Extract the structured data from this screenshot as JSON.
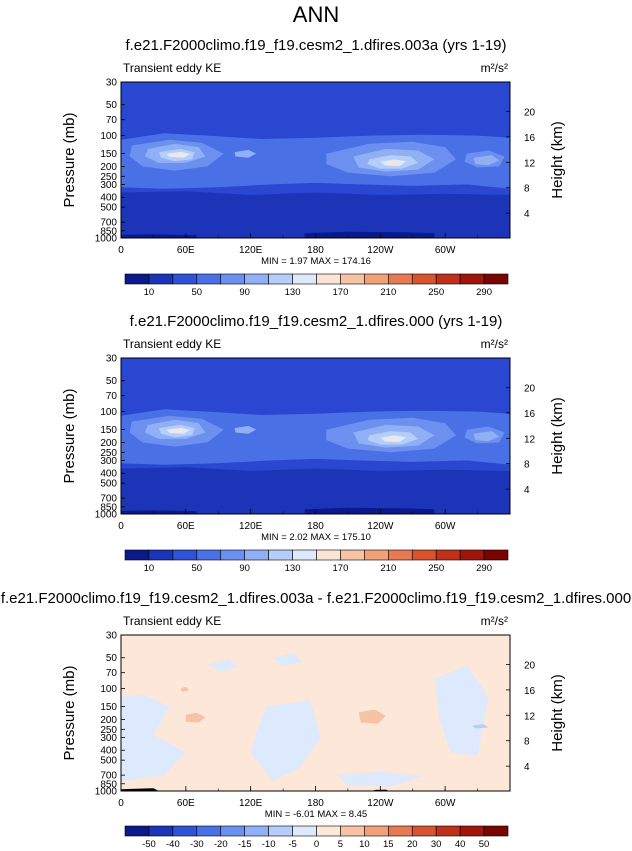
{
  "page_title": "ANN",
  "unit_label": "m²/s²",
  "variable_label": "Transient eddy KE",
  "y_left_label": "Pressure (mb)",
  "y_right_label": "Height (km)",
  "chart_data": [
    {
      "type": "heatmap",
      "title": "f.e21.F2000climo.f19_f19.cesm2_1.dfires.003a (yrs 1-19)",
      "subtitle": "Transient eddy KE",
      "x_ticks": [
        "0",
        "60E",
        "120E",
        "180",
        "120W",
        "60W"
      ],
      "x_range": [
        0,
        360
      ],
      "y_ticks": [
        "30",
        "50",
        "70",
        "100",
        "150",
        "200",
        "250",
        "300",
        "400",
        "500",
        "700",
        "850",
        "1000"
      ],
      "y_range_mb": [
        30,
        1000
      ],
      "height_ticks": [
        "20",
        "16",
        "12",
        "8",
        "4"
      ],
      "stats": "MIN =   1.97  MAX = 174.16",
      "min": 1.97,
      "max": 174.16,
      "colorbar_labels": [
        "10",
        "50",
        "90",
        "130",
        "170",
        "210",
        "250",
        "290"
      ],
      "colorbar_colors": [
        "#0a1a8a",
        "#1b34b8",
        "#2f52d6",
        "#4a70e6",
        "#6b90ef",
        "#8fb0f5",
        "#b5cdf9",
        "#dde9fc",
        "#fbe3d6",
        "#f7c3a5",
        "#f1a078",
        "#e77a52",
        "#d8532f",
        "#c0301a",
        "#a0150c",
        "#7a0500"
      ],
      "background_color": "#2947d0"
    },
    {
      "type": "heatmap",
      "title": "f.e21.F2000climo.f19_f19.cesm2_1.dfires.000 (yrs 1-19)",
      "subtitle": "Transient eddy KE",
      "x_ticks": [
        "0",
        "60E",
        "120E",
        "180",
        "120W",
        "60W"
      ],
      "x_range": [
        0,
        360
      ],
      "y_ticks": [
        "30",
        "50",
        "70",
        "100",
        "150",
        "200",
        "250",
        "300",
        "400",
        "500",
        "700",
        "850",
        "1000"
      ],
      "y_range_mb": [
        30,
        1000
      ],
      "height_ticks": [
        "20",
        "16",
        "12",
        "8",
        "4"
      ],
      "stats": "MIN =   2.02  MAX = 175.10",
      "min": 2.02,
      "max": 175.1,
      "colorbar_labels": [
        "10",
        "50",
        "90",
        "130",
        "170",
        "210",
        "250",
        "290"
      ],
      "colorbar_colors": [
        "#0a1a8a",
        "#1b34b8",
        "#2f52d6",
        "#4a70e6",
        "#6b90ef",
        "#8fb0f5",
        "#b5cdf9",
        "#dde9fc",
        "#fbe3d6",
        "#f7c3a5",
        "#f1a078",
        "#e77a52",
        "#d8532f",
        "#c0301a",
        "#a0150c",
        "#7a0500"
      ],
      "background_color": "#2947d0"
    },
    {
      "type": "heatmap",
      "title": "f.e21.F2000climo.f19_f19.cesm2_1.dfires.003a - f.e21.F2000climo.f19_f19.cesm2_1.dfires.000",
      "subtitle": "Transient eddy KE",
      "x_ticks": [
        "0",
        "60E",
        "120E",
        "180",
        "120W",
        "60W"
      ],
      "x_range": [
        0,
        360
      ],
      "y_ticks": [
        "30",
        "50",
        "70",
        "100",
        "150",
        "200",
        "250",
        "300",
        "400",
        "500",
        "700",
        "850",
        "1000"
      ],
      "y_range_mb": [
        30,
        1000
      ],
      "height_ticks": [
        "20",
        "16",
        "12",
        "8",
        "4"
      ],
      "stats": "MIN =  -6.01  MAX =   8.45",
      "min": -6.01,
      "max": 8.45,
      "colorbar_labels": [
        "-50",
        "-40",
        "-30",
        "-20",
        "-15",
        "-10",
        "-5",
        "0",
        "5",
        "10",
        "15",
        "20",
        "30",
        "40",
        "50"
      ],
      "colorbar_colors": [
        "#0a1a8a",
        "#1b34b8",
        "#2f52d6",
        "#4a70e6",
        "#6b90ef",
        "#8fb0f5",
        "#b5cdf9",
        "#dde9fc",
        "#fde7d8",
        "#f7c3a5",
        "#f1a078",
        "#e77a52",
        "#d8532f",
        "#c0301a",
        "#a0150c",
        "#7a0500"
      ],
      "background_color": "#fde7d8"
    }
  ]
}
